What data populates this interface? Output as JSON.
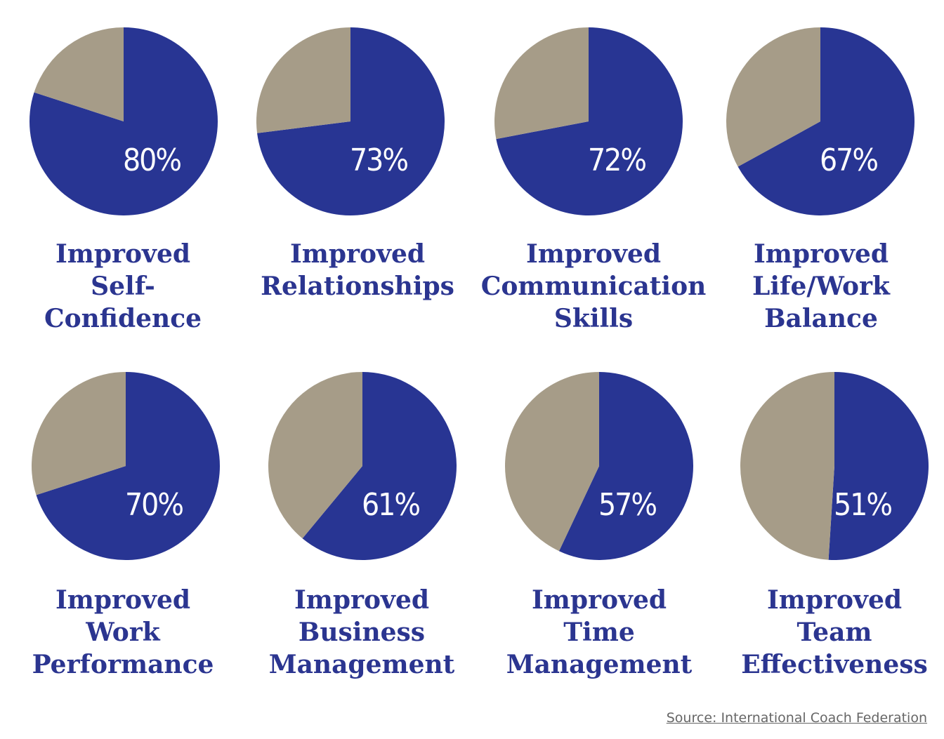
{
  "chart_data": {
    "type": "pie",
    "title": "",
    "unit": "%",
    "items": [
      {
        "label_lines": [
          "Improved",
          "Self-",
          "Confidence"
        ],
        "value": 80,
        "value_label": "80%"
      },
      {
        "label_lines": [
          "Improved",
          "Relationships"
        ],
        "value": 73,
        "value_label": "73%"
      },
      {
        "label_lines": [
          "Improved",
          "Communication",
          "Skills"
        ],
        "value": 72,
        "value_label": "72%"
      },
      {
        "label_lines": [
          "Improved",
          "Life/Work",
          "Balance"
        ],
        "value": 67,
        "value_label": "67%"
      },
      {
        "label_lines": [
          "Improved",
          "Work",
          "Performance"
        ],
        "value": 70,
        "value_label": "70%"
      },
      {
        "label_lines": [
          "Improved",
          "Business",
          "Management"
        ],
        "value": 61,
        "value_label": "61%"
      },
      {
        "label_lines": [
          "Improved",
          "Time",
          "Management"
        ],
        "value": 57,
        "value_label": "57%"
      },
      {
        "label_lines": [
          "Improved",
          "Team",
          "Effectiveness"
        ],
        "value": 51,
        "value_label": "51%"
      }
    ],
    "colors": {
      "value": "#283593",
      "remainder": "#a69c88",
      "label": "#2b3590"
    }
  },
  "source": "Source: International Coach Federation"
}
